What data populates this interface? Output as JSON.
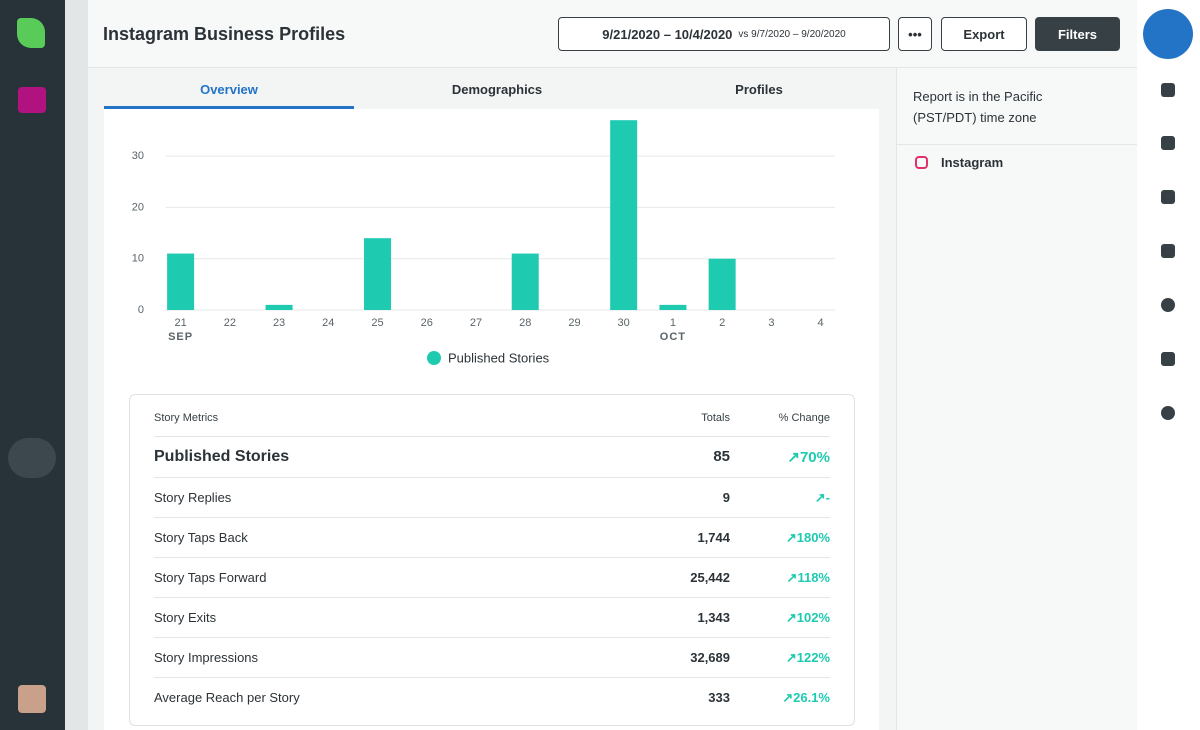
{
  "header": {
    "title": "Instagram Business Profiles",
    "date_range": "9/21/2020 – 10/4/2020",
    "compare": "vs 9/7/2020 – 9/20/2020",
    "more": "•••",
    "export": "Export",
    "filters": "Filters"
  },
  "tabs": [
    "Overview",
    "Demographics",
    "Profiles"
  ],
  "chart_data": {
    "type": "bar",
    "categories": [
      "21",
      "22",
      "23",
      "24",
      "25",
      "26",
      "27",
      "28",
      "29",
      "30",
      "1",
      "2",
      "3",
      "4"
    ],
    "month_labels": [
      "SEP",
      null,
      null,
      null,
      null,
      null,
      null,
      null,
      null,
      null,
      "OCT",
      null,
      null,
      null
    ],
    "series": [
      {
        "name": "Published Stories",
        "color": "#1ecab0",
        "values": [
          11,
          0,
          1,
          0,
          14,
          0,
          0,
          11,
          0,
          37,
          1,
          10,
          0,
          0
        ]
      }
    ],
    "ylim": [
      0,
      38
    ],
    "yticks": [
      0,
      10,
      20,
      30
    ],
    "grid": true
  },
  "table": {
    "header": [
      "Story Metrics",
      "Totals",
      "% Change"
    ],
    "rows": [
      [
        "Published Stories",
        "85",
        "70%"
      ],
      [
        "Story Replies",
        "9",
        "-"
      ],
      [
        "Story Taps Back",
        "1,744",
        "180%"
      ],
      [
        "Story Taps Forward",
        "25,442",
        "118%"
      ],
      [
        "Story Exits",
        "1,343",
        "102%"
      ],
      [
        "Story Impressions",
        "32,689",
        "122%"
      ],
      [
        "Average Reach per Story",
        "333",
        "26.1%"
      ]
    ]
  },
  "side_panel": {
    "timezone_note": "Report is in the Pacific (PST/PDT) time zone",
    "network": "Instagram"
  }
}
